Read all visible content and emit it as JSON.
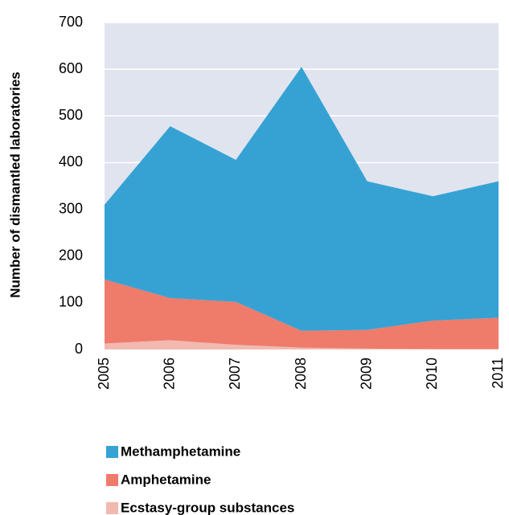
{
  "chart_data": {
    "type": "stacked-area",
    "y_label": "Number of dismantled laboratories",
    "categories": [
      "2005",
      "2006",
      "2007",
      "2008",
      "2009",
      "2010",
      "2011"
    ],
    "series": [
      {
        "name": "Ecstasy-group substances",
        "color": "#f2b9b0",
        "values": [
          13,
          20,
          10,
          4,
          2,
          1,
          1
        ]
      },
      {
        "name": "Amphetamine",
        "color": "#ef7b6b",
        "values": [
          137,
          90,
          92,
          36,
          40,
          61,
          67
        ]
      },
      {
        "name": "Methamphetamine",
        "color": "#36a2d4",
        "values": [
          160,
          368,
          304,
          565,
          318,
          266,
          292
        ]
      }
    ],
    "ylim": [
      0,
      700
    ],
    "yticks": [
      0,
      100,
      200,
      300,
      400,
      500,
      600,
      700
    ],
    "grid": true,
    "legend": "bottom"
  }
}
